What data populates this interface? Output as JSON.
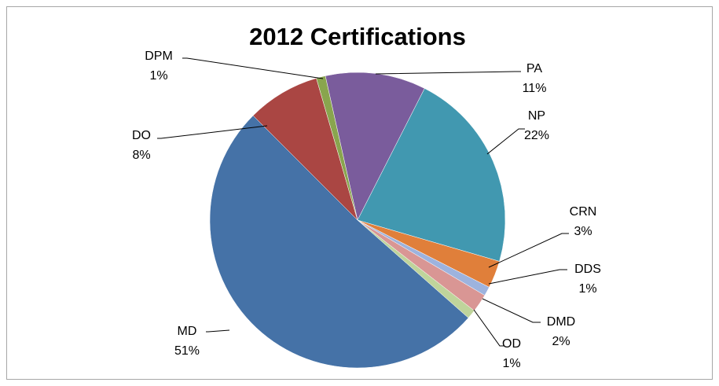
{
  "chart_data": {
    "type": "pie",
    "title": "2012 Certifications",
    "categories": [
      "PA",
      "NP",
      "CRN",
      "DDS",
      "DMD",
      "OD",
      "MD",
      "DO",
      "DPM"
    ],
    "values": [
      11,
      22,
      3,
      1,
      2,
      1,
      51,
      8,
      1
    ],
    "value_labels": [
      "11%",
      "22%",
      "3%",
      "1%",
      "2%",
      "1%",
      "51%",
      "8%",
      "1%"
    ],
    "colors": [
      "#7a5c9c",
      "#4198b0",
      "#e07f3a",
      "#9db3de",
      "#d99694",
      "#bfd49b",
      "#4572a7",
      "#aa4643",
      "#89a54e"
    ]
  }
}
